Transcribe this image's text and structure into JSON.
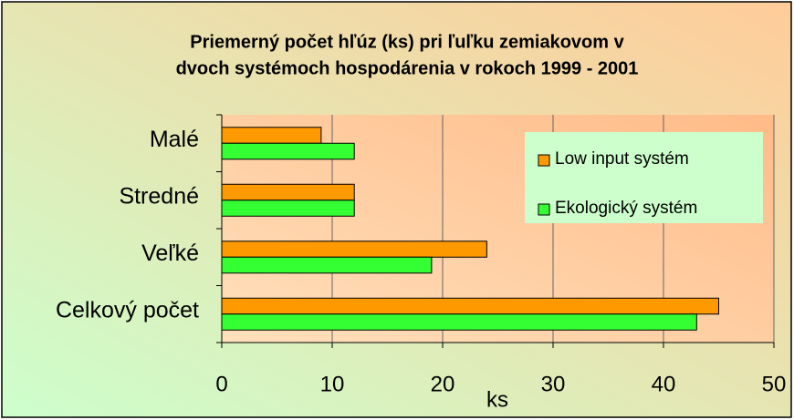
{
  "chart_data": {
    "type": "bar",
    "orientation": "horizontal",
    "title": [
      "Priemerný počet hľúz (ks) pri ľuľku zemiakovom v",
      "dvoch systémoch hospodárenia v rokoch 1999 - 2001"
    ],
    "x_label": "ks",
    "categories": [
      "Malé",
      "Stredné",
      "Veľké",
      "Celkový počet"
    ],
    "series": [
      {
        "name": "Low input systém",
        "color": "#ff9900",
        "values": [
          9,
          12,
          24,
          45
        ]
      },
      {
        "name": "Ekologický systém",
        "color": "#33ff33",
        "values": [
          12,
          12,
          19,
          43
        ]
      }
    ],
    "xlim": [
      0,
      50
    ],
    "xticks": [
      0,
      10,
      20,
      30,
      40,
      50
    ],
    "grid": true,
    "legend": "upper right"
  }
}
